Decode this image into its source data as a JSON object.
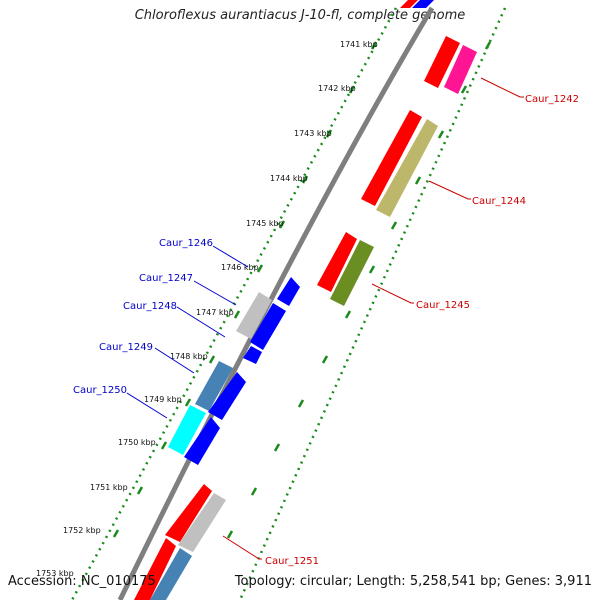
{
  "title": "Chloroflexus aurantiacus J-10-fl, complete genome",
  "footer": {
    "accession_label": "Accession:",
    "accession": "NC_010175",
    "topology_label": "Topology:",
    "topology": "circular",
    "length_label": "Length:",
    "length": "5,258,541 bp",
    "genes_label": "Genes:",
    "genes": "3,911"
  },
  "ticks": [
    "1741 kbp",
    "1742 kbp",
    "1743 kbp",
    "1744 kbp",
    "1745 kbp",
    "1746 kbp",
    "1747 kbp",
    "1748 kbp",
    "1749 kbp",
    "1750 kbp",
    "1751 kbp",
    "1752 kbp",
    "1753 kbp"
  ],
  "genes_labeled": {
    "right": [
      "Caur_1242",
      "Caur_1244",
      "Caur_1245",
      "Caur_1251"
    ],
    "left": [
      "Caur_1246",
      "Caur_1247",
      "Caur_1248",
      "Caur_1249",
      "Caur_1250"
    ]
  },
  "colors": {
    "backbone": "#7f7f7f",
    "tick_dots": "#1a8a1a",
    "right_label": "#cc0000",
    "left_label": "#0000cc",
    "red": "#ff0000",
    "magenta": "#ff1493",
    "khaki": "#bdb76b",
    "olive": "#6b8e23",
    "grey": "#c0c0c0",
    "blue": "#0000ff",
    "steelblue": "#4682b4",
    "cyan": "#00ffff"
  }
}
